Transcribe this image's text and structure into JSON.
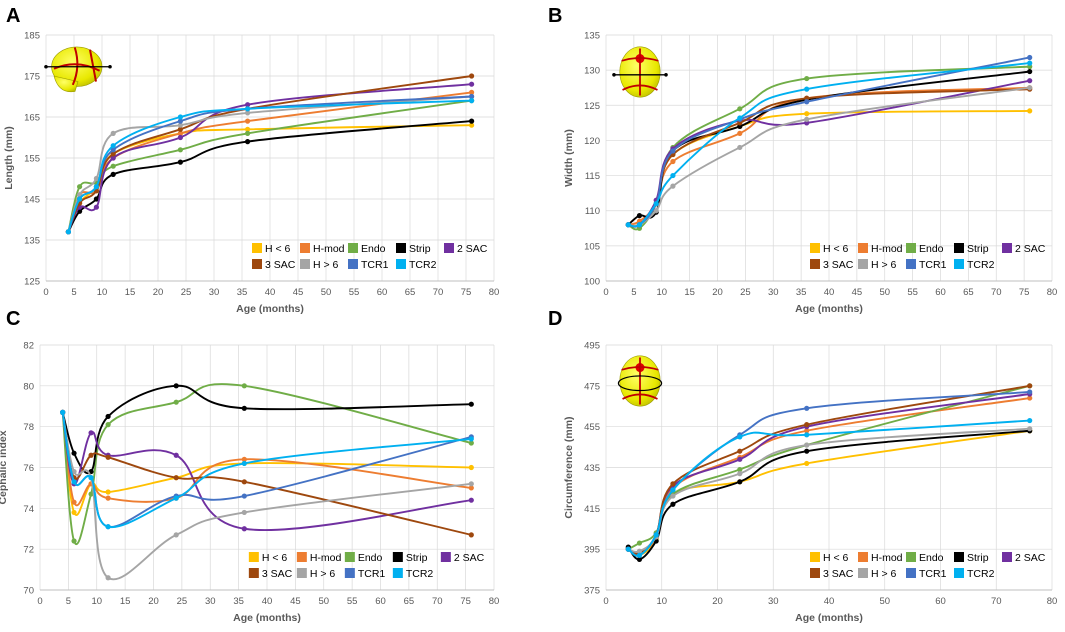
{
  "series_colors": {
    "H < 6": "#FFC000",
    "H-mod": "#ED7D31",
    "Endo": "#70AD47",
    "Strip": "#000000",
    "2 SAC": "#7030A0",
    "3 SAC": "#9E480E",
    "H > 6": "#A5A5A5",
    "TCR1": "#4472C4",
    "TCR2": "#00B0F0"
  },
  "chart_data": [
    {
      "panel": "A",
      "type": "line",
      "title": "",
      "xlabel": "Age (months)",
      "ylabel": "Length (mm)",
      "xlim": [
        0,
        80
      ],
      "ylim": [
        125,
        185
      ],
      "xticks": [
        0,
        5,
        10,
        15,
        20,
        25,
        30,
        35,
        40,
        45,
        50,
        55,
        60,
        65,
        70,
        75,
        80
      ],
      "yticks": [
        125,
        135,
        145,
        155,
        165,
        175,
        185
      ],
      "legend_position": "bottom-right",
      "icon": "skull-lateral-icon",
      "series": [
        {
          "name": "H < 6",
          "x": [
            4,
            6,
            9,
            12,
            24,
            36,
            76
          ],
          "y": [
            137,
            144,
            148,
            156,
            161,
            162,
            163
          ]
        },
        {
          "name": "H-mod",
          "x": [
            4,
            6,
            9,
            12,
            24,
            36,
            76
          ],
          "y": [
            137,
            146,
            147,
            155,
            161,
            164,
            171
          ]
        },
        {
          "name": "Endo",
          "x": [
            4,
            6,
            9,
            12,
            24,
            36,
            76
          ],
          "y": [
            137,
            148,
            149,
            153,
            157,
            161,
            169
          ]
        },
        {
          "name": "Strip",
          "x": [
            4,
            6,
            9,
            12,
            24,
            36,
            76
          ],
          "y": [
            137,
            142,
            145,
            151,
            154,
            159,
            164
          ]
        },
        {
          "name": "2 SAC",
          "x": [
            4,
            6,
            9,
            12,
            24,
            36,
            76
          ],
          "y": [
            137,
            143,
            143,
            155,
            160,
            168,
            173
          ]
        },
        {
          "name": "3 SAC",
          "x": [
            4,
            6,
            9,
            12,
            24,
            36,
            76
          ],
          "y": [
            137,
            144,
            147,
            156,
            162,
            167,
            175
          ]
        },
        {
          "name": "H > 6",
          "x": [
            4,
            6,
            9,
            12,
            24,
            36,
            76
          ],
          "y": [
            137,
            146,
            150,
            161,
            163,
            166,
            170
          ]
        },
        {
          "name": "TCR1",
          "x": [
            4,
            6,
            9,
            12,
            24,
            36,
            76
          ],
          "y": [
            137,
            145,
            148,
            157,
            164,
            167,
            170
          ]
        },
        {
          "name": "TCR2",
          "x": [
            4,
            6,
            9,
            12,
            24,
            36,
            76
          ],
          "y": [
            137,
            145,
            148,
            158,
            165,
            167,
            169
          ]
        }
      ]
    },
    {
      "panel": "B",
      "type": "line",
      "title": "",
      "xlabel": "Age (months)",
      "ylabel": "Width (mm)",
      "xlim": [
        0,
        80
      ],
      "ylim": [
        100,
        135
      ],
      "xticks": [
        0,
        5,
        10,
        15,
        20,
        25,
        30,
        35,
        40,
        45,
        50,
        55,
        60,
        65,
        70,
        75,
        80
      ],
      "yticks": [
        100,
        105,
        110,
        115,
        120,
        125,
        130,
        135
      ],
      "legend_position": "bottom-right",
      "icon": "skull-top-icon",
      "series": [
        {
          "name": "H < 6",
          "x": [
            4,
            6,
            9,
            12,
            24,
            36,
            76
          ],
          "y": [
            108,
            108,
            111,
            118,
            122,
            123.8,
            124.2
          ]
        },
        {
          "name": "H-mod",
          "x": [
            4,
            6,
            9,
            12,
            24,
            36,
            76
          ],
          "y": [
            108,
            108.5,
            111,
            117,
            121,
            126,
            127.5
          ]
        },
        {
          "name": "Endo",
          "x": [
            4,
            6,
            9,
            12,
            24,
            36,
            76
          ],
          "y": [
            108,
            107.5,
            111,
            119,
            124.5,
            128.8,
            130.5
          ]
        },
        {
          "name": "Strip",
          "x": [
            4,
            6,
            9,
            12,
            24,
            36,
            76
          ],
          "y": [
            108,
            109.3,
            109.8,
            118.5,
            122,
            125.8,
            129.8
          ]
        },
        {
          "name": "2 SAC",
          "x": [
            4,
            6,
            9,
            12,
            24,
            36,
            76
          ],
          "y": [
            108,
            108,
            111.5,
            118.8,
            122.8,
            122.5,
            128.5
          ]
        },
        {
          "name": "3 SAC",
          "x": [
            4,
            6,
            9,
            12,
            24,
            36,
            76
          ],
          "y": [
            108,
            108,
            111,
            118,
            122.5,
            126,
            127.3
          ]
        },
        {
          "name": "H > 6",
          "x": [
            4,
            6,
            9,
            12,
            24,
            36,
            76
          ],
          "y": [
            108,
            108,
            110,
            113.5,
            119,
            123,
            127.5
          ]
        },
        {
          "name": "TCR1",
          "x": [
            4,
            6,
            9,
            12,
            24,
            36,
            76
          ],
          "y": [
            108,
            108,
            111,
            118.5,
            123,
            125.5,
            131.8
          ]
        },
        {
          "name": "TCR2",
          "x": [
            4,
            6,
            9,
            12,
            24,
            36,
            76
          ],
          "y": [
            108,
            108,
            111,
            115,
            123.2,
            127.3,
            131
          ]
        }
      ]
    },
    {
      "panel": "C",
      "type": "line",
      "title": "",
      "xlabel": "Age (months)",
      "ylabel": "Cephalic index",
      "xlim": [
        0,
        80
      ],
      "ylim": [
        70,
        82
      ],
      "xticks": [
        0,
        5,
        10,
        15,
        20,
        25,
        30,
        35,
        40,
        45,
        50,
        55,
        60,
        65,
        70,
        75,
        80
      ],
      "yticks": [
        70,
        72,
        74,
        76,
        78,
        80,
        82
      ],
      "legend_position": "bottom-center",
      "series": [
        {
          "name": "H < 6",
          "x": [
            4,
            6,
            9,
            12,
            24,
            36,
            76
          ],
          "y": [
            78.7,
            73.8,
            75.2,
            74.8,
            75.5,
            76.2,
            76
          ]
        },
        {
          "name": "H-mod",
          "x": [
            4,
            6,
            9,
            12,
            24,
            36,
            76
          ],
          "y": [
            78.7,
            74.3,
            75.2,
            74.5,
            74.5,
            76.4,
            75
          ]
        },
        {
          "name": "Endo",
          "x": [
            4,
            6,
            9,
            12,
            24,
            36,
            76
          ],
          "y": [
            78.7,
            72.4,
            74.7,
            78.1,
            79.2,
            80,
            77.2
          ]
        },
        {
          "name": "Strip",
          "x": [
            4,
            6,
            9,
            12,
            24,
            36,
            76
          ],
          "y": [
            78.7,
            76.7,
            75.8,
            78.5,
            80,
            78.9,
            79.1
          ]
        },
        {
          "name": "2 SAC",
          "x": [
            4,
            6,
            9,
            12,
            24,
            36,
            76
          ],
          "y": [
            78.7,
            75.2,
            77.7,
            76.6,
            76.6,
            73,
            74.4
          ]
        },
        {
          "name": "3 SAC",
          "x": [
            4,
            6,
            9,
            12,
            24,
            36,
            76
          ],
          "y": [
            78.7,
            75.5,
            76.6,
            76.5,
            75.5,
            75.3,
            72.7
          ]
        },
        {
          "name": "H > 6",
          "x": [
            4,
            6,
            9,
            12,
            24,
            36,
            76
          ],
          "y": [
            78.7,
            75.8,
            75.5,
            70.6,
            72.7,
            73.8,
            75.2
          ]
        },
        {
          "name": "TCR1",
          "x": [
            4,
            6,
            9,
            12,
            24,
            36,
            76
          ],
          "y": [
            78.7,
            75.3,
            75.5,
            73.1,
            74.6,
            74.6,
            77.5
          ]
        },
        {
          "name": "TCR2",
          "x": [
            4,
            6,
            9,
            12,
            24,
            36,
            76
          ],
          "y": [
            78.7,
            75.3,
            75.5,
            73.1,
            74.5,
            76.2,
            77.4
          ]
        }
      ]
    },
    {
      "panel": "D",
      "type": "line",
      "title": "",
      "xlabel": "Age (months)",
      "ylabel": "Circumference (mm)",
      "xlim": [
        0,
        80
      ],
      "ylim": [
        375,
        495
      ],
      "xticks": [
        0,
        10,
        20,
        30,
        40,
        50,
        60,
        70,
        80
      ],
      "yticks": [
        375,
        395,
        415,
        435,
        455,
        475,
        495
      ],
      "legend_position": "bottom-right",
      "icon": "skull-top-icon",
      "series": [
        {
          "name": "H < 6",
          "x": [
            4,
            6,
            9,
            12,
            24,
            36,
            76
          ],
          "y": [
            395,
            392,
            400,
            422,
            428,
            437,
            453
          ]
        },
        {
          "name": "H-mod",
          "x": [
            4,
            6,
            9,
            12,
            24,
            36,
            76
          ],
          "y": [
            395,
            393,
            401,
            425,
            440,
            453,
            469
          ]
        },
        {
          "name": "Endo",
          "x": [
            4,
            6,
            9,
            12,
            24,
            36,
            76
          ],
          "y": [
            395,
            398,
            403,
            422,
            434,
            446,
            475
          ]
        },
        {
          "name": "Strip",
          "x": [
            4,
            6,
            9,
            12,
            24,
            36,
            76
          ],
          "y": [
            396,
            390,
            399,
            417,
            428,
            443,
            453
          ]
        },
        {
          "name": "2 SAC",
          "x": [
            4,
            6,
            9,
            12,
            24,
            36,
            76
          ],
          "y": [
            395,
            393,
            402,
            426,
            439,
            455,
            471
          ]
        },
        {
          "name": "3 SAC",
          "x": [
            4,
            6,
            9,
            12,
            24,
            36,
            76
          ],
          "y": [
            395,
            393,
            402,
            427,
            443,
            456,
            475
          ]
        },
        {
          "name": "H > 6",
          "x": [
            4,
            6,
            9,
            12,
            24,
            36,
            76
          ],
          "y": [
            395,
            394,
            401,
            421,
            432,
            446,
            454
          ]
        },
        {
          "name": "TCR1",
          "x": [
            4,
            6,
            9,
            12,
            24,
            36,
            76
          ],
          "y": [
            395,
            392,
            402,
            424,
            451,
            464,
            472
          ]
        },
        {
          "name": "TCR2",
          "x": [
            4,
            6,
            9,
            12,
            24,
            36,
            76
          ],
          "y": [
            395,
            392,
            402,
            424,
            450,
            451,
            458
          ]
        }
      ]
    }
  ]
}
